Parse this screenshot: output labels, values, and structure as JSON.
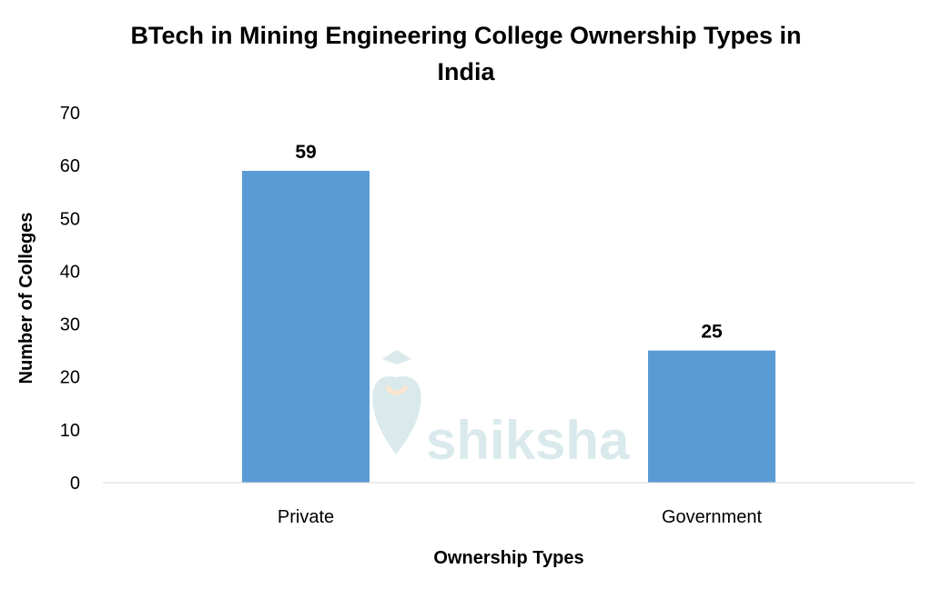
{
  "chart_data": {
    "type": "bar",
    "title": "BTech in Mining Engineering College Ownership Types in India",
    "title_lines": [
      "BTech in Mining Engineering College Ownership Types in",
      "India"
    ],
    "xlabel": "Ownership Types",
    "ylabel": "Number of Colleges",
    "categories": [
      "Private",
      "Government"
    ],
    "values": [
      59,
      25
    ],
    "data_labels": [
      "59",
      "25"
    ],
    "ylim": [
      0,
      70
    ],
    "yticks": [
      "0",
      "10",
      "20",
      "30",
      "40",
      "50",
      "60",
      "70"
    ],
    "grid": false,
    "legend": "none",
    "bar_color": "#5b9bd5",
    "watermark": "shiksha"
  }
}
